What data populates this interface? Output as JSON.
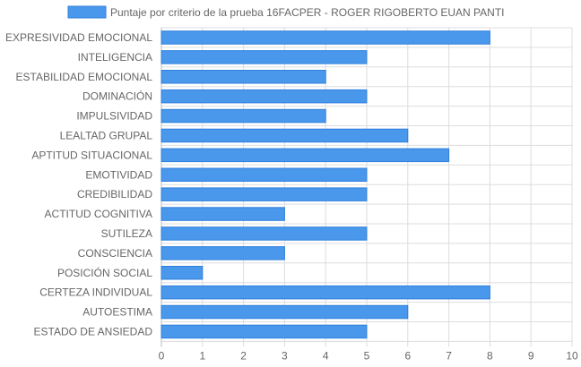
{
  "chart_data": {
    "type": "bar",
    "orientation": "horizontal",
    "categories": [
      "EXPRESIVIDAD EMOCIONAL",
      "INTELIGENCIA",
      "ESTABILIDAD EMOCIONAL",
      "DOMINACIÓN",
      "IMPULSIVIDAD",
      "LEALTAD GRUPAL",
      "APTITUD SITUACIONAL",
      "EMOTIVIDAD",
      "CREDIBILIDAD",
      "ACTITUD COGNITIVA",
      "SUTILEZA",
      "CONSCIENCIA",
      "POSICIÓN SOCIAL",
      "CERTEZA INDIVIDUAL",
      "AUTOESTIMA",
      "ESTADO DE ANSIEDAD"
    ],
    "series": [
      {
        "name": "Puntaje por criterio de la prueba 16FACPER - ROGER RIGOBERTO EUAN PANTI",
        "values": [
          8,
          5,
          4,
          5,
          4,
          6,
          7,
          5,
          5,
          3,
          5,
          3,
          1,
          8,
          6,
          5
        ]
      }
    ],
    "xlim": [
      0,
      10
    ],
    "xticks": [
      "0",
      "1",
      "2",
      "3",
      "4",
      "5",
      "6",
      "7",
      "8",
      "9",
      "10"
    ],
    "grid": true,
    "legend_position": "top",
    "colors": {
      "bar_fill": "#4a98ec",
      "bar_stroke": "#2f7fdc",
      "grid": "#dddddd",
      "axis_text": "#666666"
    }
  }
}
